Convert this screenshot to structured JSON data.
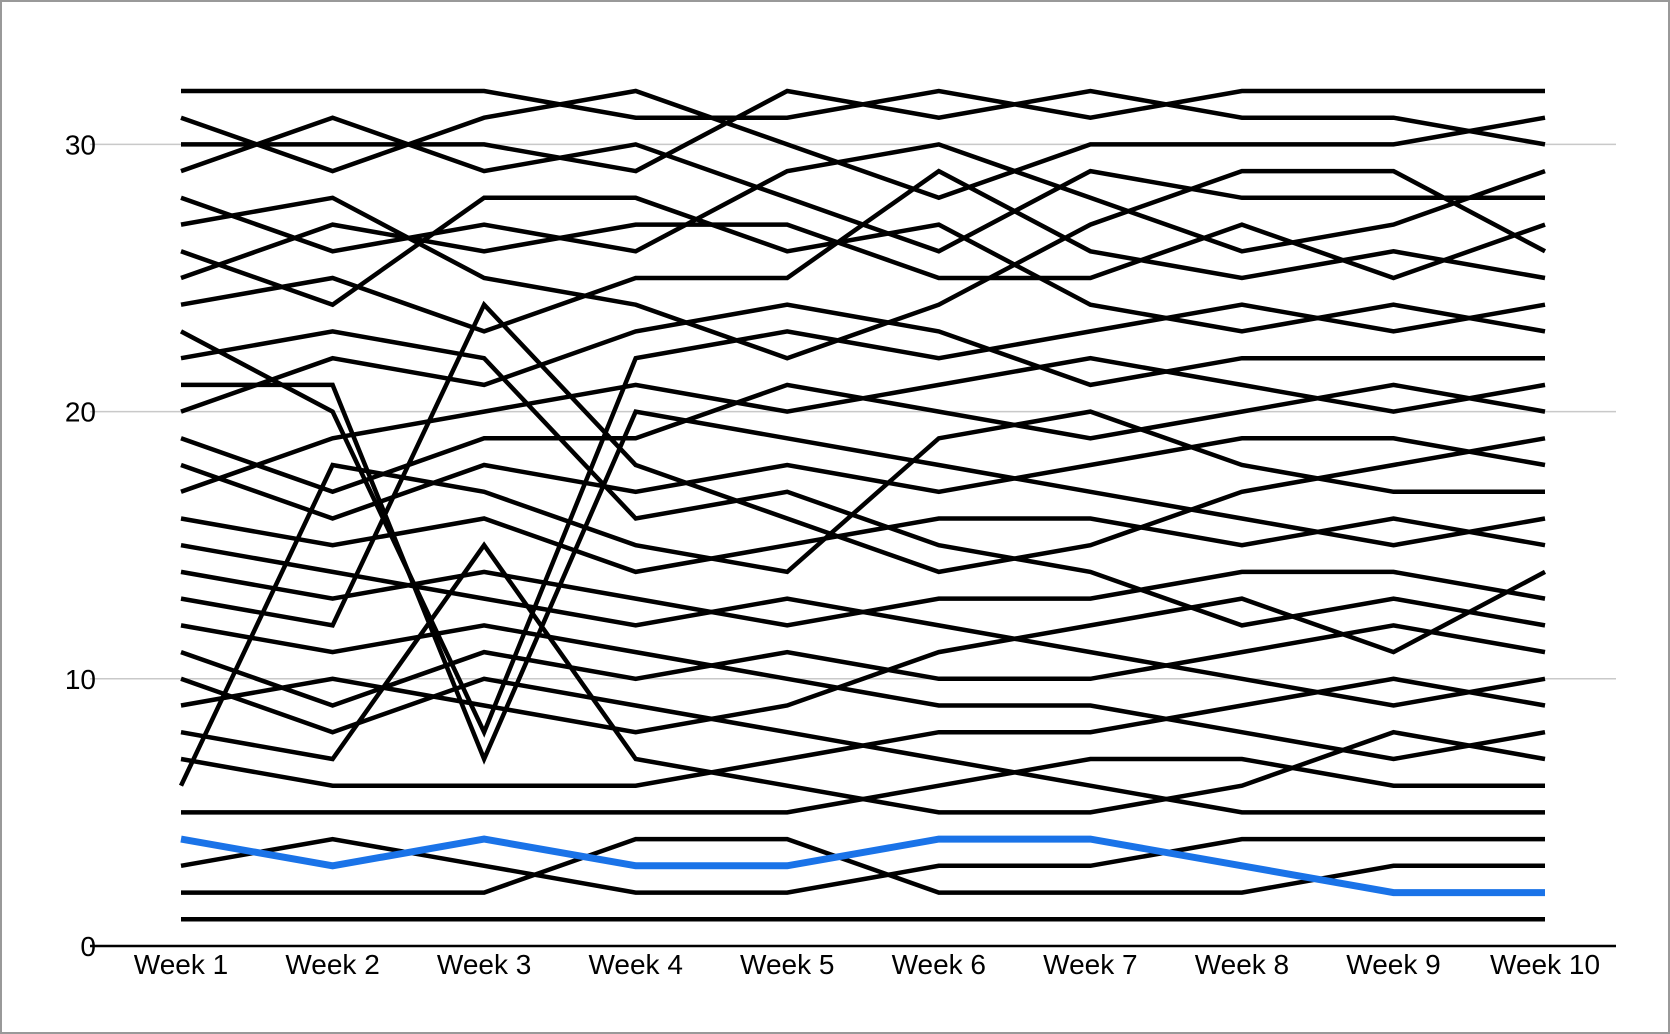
{
  "chart_data": {
    "type": "line",
    "subtype": "bump-rank-chart",
    "title": "",
    "xlabel": "",
    "ylabel": "",
    "x_categories": [
      "Week 1",
      "Week 2",
      "Week 3",
      "Week 4",
      "Week 5",
      "Week 6",
      "Week 7",
      "Week 8",
      "Week 9",
      "Week 10"
    ],
    "y_tick_labels": [
      "0",
      "10",
      "20",
      "30"
    ],
    "y_ticks": [
      0,
      10,
      20,
      30
    ],
    "ylim": [
      0,
      33.5
    ],
    "grid": "horizontal-only",
    "legend": "none",
    "colors": {
      "default_line": "#000000",
      "highlight_line": "#1a73e8",
      "gridline": "#c9c9c9",
      "axis_line": "#000000",
      "background": "#ffffff",
      "frame_border": "#999999",
      "label_text": "#000000"
    },
    "series": [
      {
        "id": "s1",
        "highlight": false,
        "values": [
          32,
          32,
          32,
          31,
          31,
          32,
          31,
          32,
          32,
          32
        ]
      },
      {
        "id": "s2",
        "highlight": false,
        "values": [
          31,
          29,
          31,
          32,
          30,
          28,
          30,
          30,
          30,
          31
        ]
      },
      {
        "id": "s3",
        "highlight": false,
        "values": [
          30,
          30,
          30,
          29,
          32,
          31,
          32,
          31,
          31,
          30
        ]
      },
      {
        "id": "s4",
        "highlight": false,
        "values": [
          29,
          31,
          29,
          30,
          28,
          26,
          29,
          28,
          28,
          28
        ]
      },
      {
        "id": "s5",
        "highlight": false,
        "values": [
          28,
          26,
          27,
          26,
          29,
          30,
          28,
          26,
          27,
          29
        ]
      },
      {
        "id": "s6",
        "highlight": false,
        "values": [
          27,
          28,
          25,
          24,
          22,
          24,
          27,
          29,
          29,
          26
        ]
      },
      {
        "id": "s7",
        "highlight": false,
        "values": [
          26,
          24,
          28,
          28,
          26,
          27,
          24,
          23,
          24,
          23
        ]
      },
      {
        "id": "s8",
        "highlight": false,
        "values": [
          25,
          27,
          26,
          27,
          27,
          25,
          25,
          27,
          25,
          27
        ]
      },
      {
        "id": "s9",
        "highlight": false,
        "values": [
          24,
          25,
          23,
          25,
          25,
          29,
          26,
          25,
          26,
          25
        ]
      },
      {
        "id": "s10",
        "highlight": false,
        "values": [
          23,
          20,
          8,
          22,
          23,
          22,
          23,
          24,
          23,
          24
        ]
      },
      {
        "id": "s11",
        "highlight": false,
        "values": [
          22,
          23,
          22,
          16,
          17,
          15,
          14,
          12,
          13,
          12
        ]
      },
      {
        "id": "s12",
        "highlight": false,
        "values": [
          21,
          21,
          7,
          20,
          19,
          18,
          17,
          16,
          15,
          16
        ]
      },
      {
        "id": "s13",
        "highlight": false,
        "values": [
          20,
          22,
          21,
          23,
          24,
          23,
          21,
          22,
          22,
          22
        ]
      },
      {
        "id": "s14",
        "highlight": false,
        "values": [
          19,
          17,
          19,
          19,
          21,
          20,
          19,
          20,
          21,
          20
        ]
      },
      {
        "id": "s15",
        "highlight": false,
        "values": [
          18,
          16,
          18,
          17,
          18,
          17,
          18,
          19,
          19,
          18
        ]
      },
      {
        "id": "s16",
        "highlight": false,
        "values": [
          17,
          19,
          20,
          21,
          20,
          21,
          22,
          21,
          20,
          21
        ]
      },
      {
        "id": "s17",
        "highlight": false,
        "values": [
          16,
          15,
          16,
          14,
          15,
          16,
          16,
          15,
          16,
          15
        ]
      },
      {
        "id": "s18",
        "highlight": false,
        "values": [
          15,
          14,
          13,
          12,
          13,
          12,
          11,
          10,
          9,
          10
        ]
      },
      {
        "id": "s19",
        "highlight": false,
        "values": [
          14,
          13,
          14,
          13,
          12,
          13,
          13,
          14,
          14,
          13
        ]
      },
      {
        "id": "s20",
        "highlight": false,
        "values": [
          13,
          12,
          24,
          18,
          16,
          14,
          15,
          17,
          18,
          19
        ]
      },
      {
        "id": "s21",
        "highlight": false,
        "values": [
          12,
          11,
          12,
          11,
          10,
          9,
          9,
          8,
          7,
          8
        ]
      },
      {
        "id": "s22",
        "highlight": false,
        "values": [
          11,
          9,
          11,
          10,
          11,
          10,
          10,
          11,
          12,
          11
        ]
      },
      {
        "id": "s23",
        "highlight": false,
        "values": [
          10,
          8,
          10,
          9,
          8,
          7,
          6,
          5,
          5,
          5
        ]
      },
      {
        "id": "s24",
        "highlight": false,
        "values": [
          9,
          10,
          9,
          8,
          9,
          11,
          12,
          13,
          11,
          14
        ]
      },
      {
        "id": "s25",
        "highlight": false,
        "values": [
          8,
          7,
          15,
          7,
          6,
          5,
          5,
          6,
          8,
          7
        ]
      },
      {
        "id": "s26",
        "highlight": false,
        "values": [
          7,
          6,
          6,
          6,
          7,
          8,
          8,
          9,
          10,
          9
        ]
      },
      {
        "id": "s27",
        "highlight": false,
        "values": [
          6,
          18,
          17,
          15,
          14,
          19,
          20,
          18,
          17,
          17
        ]
      },
      {
        "id": "s28",
        "highlight": false,
        "values": [
          5,
          5,
          5,
          5,
          5,
          6,
          7,
          7,
          6,
          6
        ]
      },
      {
        "id": "s29",
        "highlight": true,
        "values": [
          4,
          3,
          4,
          3,
          3,
          4,
          4,
          3,
          2,
          2
        ]
      },
      {
        "id": "s30",
        "highlight": false,
        "values": [
          3,
          4,
          3,
          2,
          2,
          3,
          3,
          4,
          4,
          4
        ]
      },
      {
        "id": "s31",
        "highlight": false,
        "values": [
          2,
          2,
          2,
          4,
          4,
          2,
          2,
          2,
          3,
          3
        ]
      },
      {
        "id": "s32",
        "highlight": false,
        "values": [
          1,
          1,
          1,
          1,
          1,
          1,
          1,
          1,
          1,
          1
        ]
      }
    ],
    "style": {
      "line_width_default": 4.5,
      "line_width_highlight": 7,
      "axis_line_width": 2.5,
      "gridline_width": 1.5
    }
  }
}
